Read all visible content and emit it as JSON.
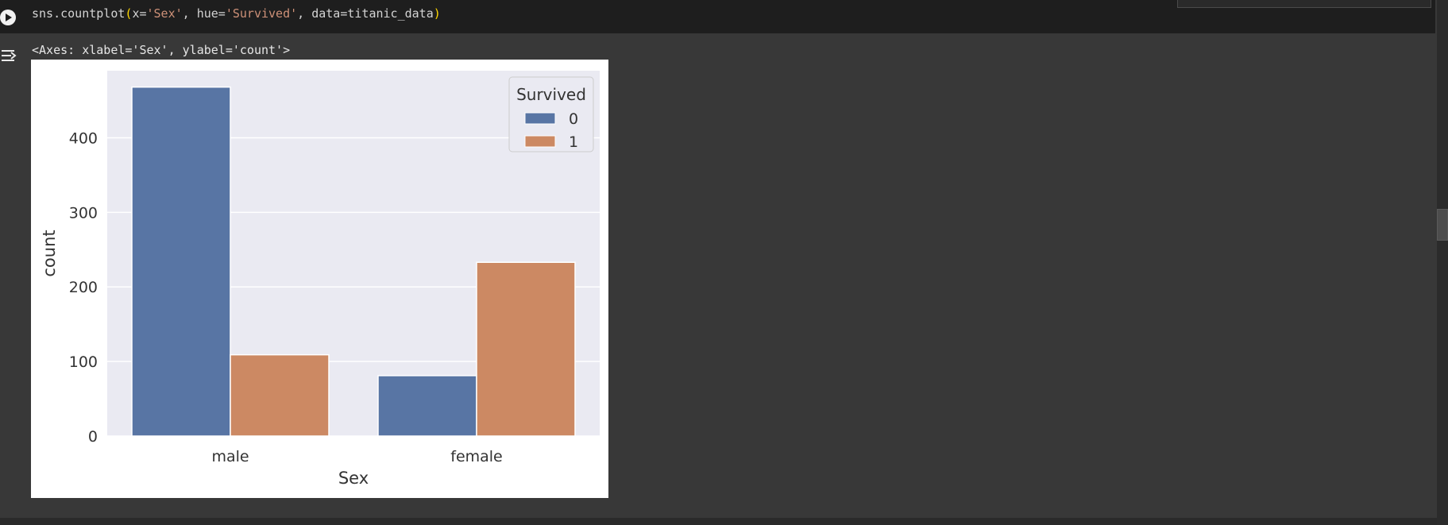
{
  "cell": {
    "code_tokens": [
      {
        "text": "sns.countplot",
        "cls": ""
      },
      {
        "text": "(",
        "cls": "tok-paren"
      },
      {
        "text": "x=",
        "cls": ""
      },
      {
        "text": "'Sex'",
        "cls": "tok-str"
      },
      {
        "text": ", hue=",
        "cls": ""
      },
      {
        "text": "'Survived'",
        "cls": "tok-str"
      },
      {
        "text": ", data=titanic_data",
        "cls": ""
      },
      {
        "text": ")",
        "cls": "tok-paren"
      }
    ]
  },
  "output": {
    "repr_text": "<Axes: xlabel='Sex', ylabel='count'>"
  },
  "chart_data": {
    "type": "bar",
    "categories": [
      "male",
      "female"
    ],
    "series": [
      {
        "name": "0",
        "values": [
          468,
          81
        ],
        "color": "#5875a4"
      },
      {
        "name": "1",
        "values": [
          109,
          233
        ],
        "color": "#cc8963"
      }
    ],
    "xlabel": "Sex",
    "ylabel": "count",
    "ylim": [
      0,
      490
    ],
    "yticks": [
      0,
      100,
      200,
      300,
      400
    ],
    "legend": {
      "title": "Survived",
      "placement": "top-right"
    },
    "grid": true,
    "background": "#eaeaf2"
  }
}
